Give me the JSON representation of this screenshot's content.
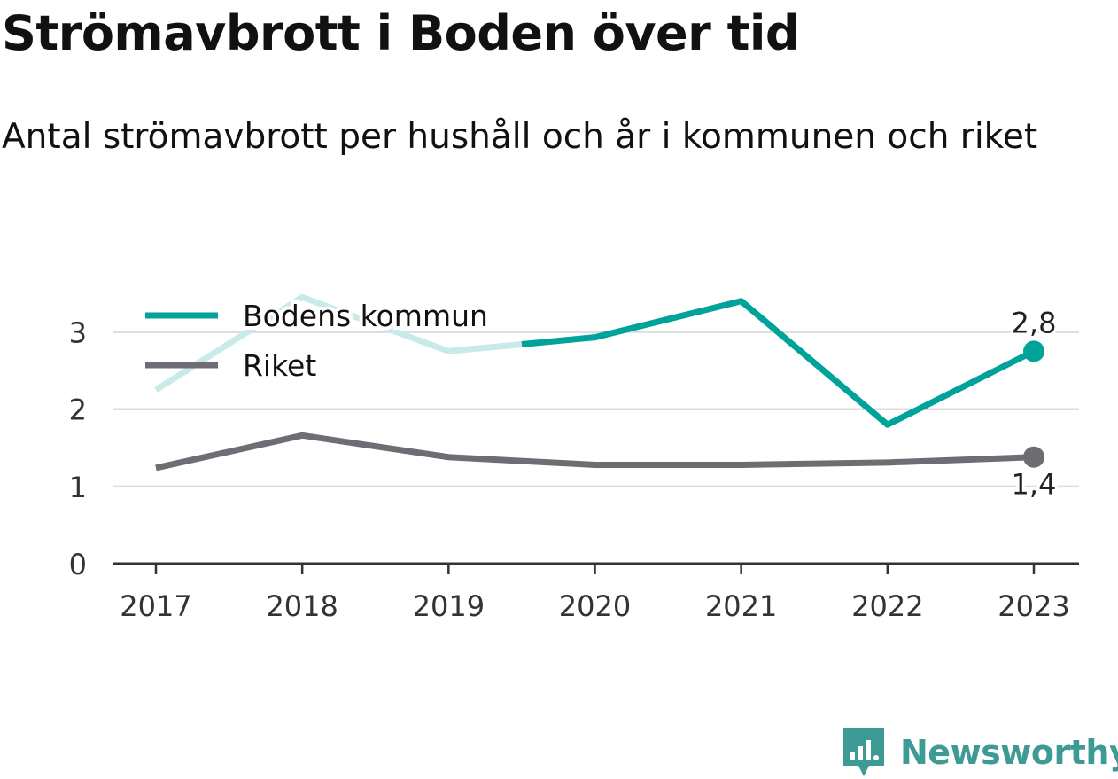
{
  "title": "Strömavbrott i Boden över tid",
  "subtitle": "Antal strömavbrott per hushåll och år i kommunen och riket",
  "brand": {
    "name": "Newsworthy",
    "icon": "newsworthy-logo-icon"
  },
  "colors": {
    "bodens": "#00a399",
    "bodens_faded": "#c8ebe9",
    "riket": "#6e6d73",
    "grid": "#dddddd",
    "axis": "#333333",
    "brand": "#3d9a95"
  },
  "chart_data": {
    "type": "line",
    "categories": [
      "2017",
      "2018",
      "2019",
      "2020",
      "2021",
      "2022",
      "2023"
    ],
    "ylim": [
      0,
      3.5
    ],
    "yticks": [
      "0",
      "1",
      "2",
      "3"
    ],
    "grid": true,
    "legend_position": "top-left",
    "series": [
      {
        "name": "Bodens kommun",
        "values": [
          2.25,
          3.45,
          2.75,
          2.93,
          3.4,
          1.8,
          2.75
        ],
        "faded_until_x": 2.5,
        "end_label": "2,8"
      },
      {
        "name": "Riket",
        "values": [
          1.24,
          1.66,
          1.38,
          1.28,
          1.28,
          1.31,
          1.38
        ],
        "end_label": "1,4"
      }
    ]
  }
}
